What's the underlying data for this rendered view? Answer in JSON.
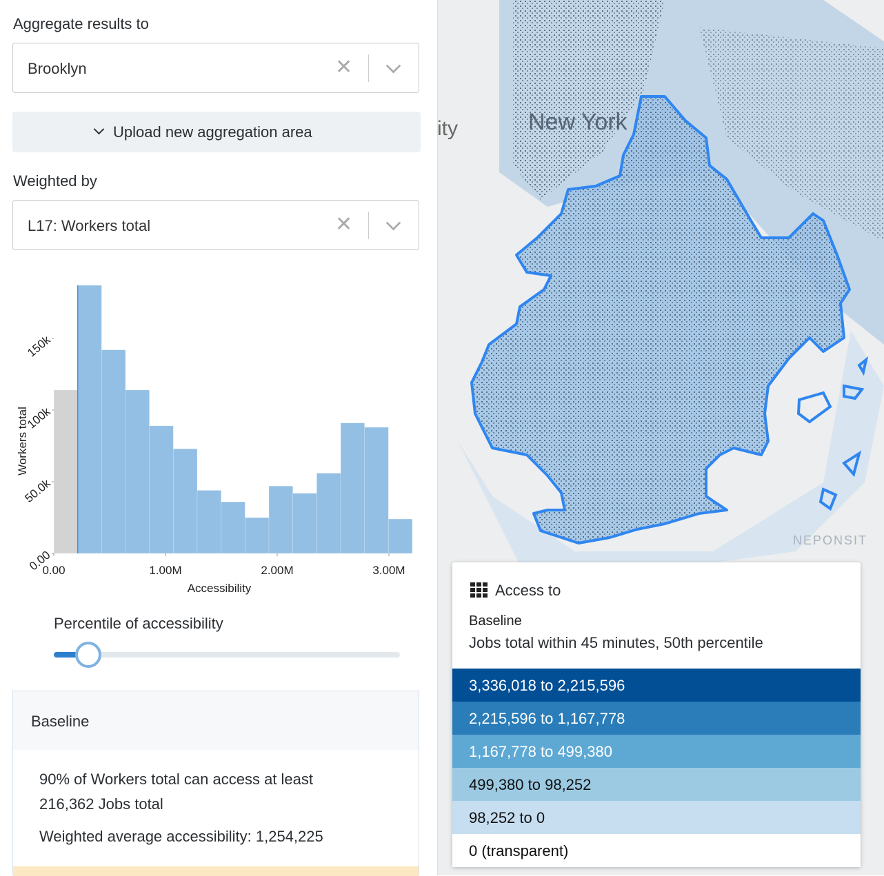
{
  "sidebar": {
    "aggregate_label": "Aggregate results to",
    "aggregate_value": "Brooklyn",
    "upload_button": "Upload new aggregation area",
    "weight_label": "Weighted by",
    "weight_value": "L17: Workers total",
    "slider": {
      "label": "Percentile of accessibility",
      "value": 10,
      "range": [
        0,
        100
      ]
    },
    "summary": {
      "title": "Baseline",
      "statement": "90% of Workers total can access at least 216,362 Jobs total",
      "average": "Weighted average accessibility: 1,254,225"
    }
  },
  "chart_data": {
    "type": "histogram",
    "x_label": "Accessibility",
    "y_label": "Workers total",
    "bins": [
      0,
      214000,
      428000,
      642000,
      856000,
      1070000,
      1284000,
      1498000,
      1712000,
      1926000,
      2140000,
      2354000,
      2568000,
      2782000,
      2996000,
      3210000
    ],
    "values": [
      114000,
      187000,
      142000,
      114000,
      89000,
      73000,
      44000,
      36000,
      25000,
      47000,
      42000,
      56000,
      91000,
      88000,
      24000
    ],
    "colors": [
      "#d3d3d3",
      "#93bfe4",
      "#93bfe4",
      "#93bfe4",
      "#93bfe4",
      "#93bfe4",
      "#93bfe4",
      "#93bfe4",
      "#93bfe4",
      "#93bfe4",
      "#93bfe4",
      "#93bfe4",
      "#93bfe4",
      "#93bfe4",
      "#93bfe4"
    ],
    "xlim": [
      0,
      3210000
    ],
    "ylim": [
      0,
      187000
    ],
    "xticks": [
      {
        "value": 0,
        "label": "0.00"
      },
      {
        "value": 1000000,
        "label": "1.00M"
      },
      {
        "value": 2000000,
        "label": "2.00M"
      },
      {
        "value": 3000000,
        "label": "3.00M"
      }
    ],
    "yticks": [
      {
        "value": 0,
        "label": "0.00"
      },
      {
        "value": 50000,
        "label": "50.0k"
      },
      {
        "value": 100000,
        "label": "100k"
      },
      {
        "value": 150000,
        "label": "150k"
      }
    ]
  },
  "map": {
    "labels": [
      "New York",
      "ity",
      "NEPONSIT"
    ],
    "legend": {
      "title": "Access to",
      "scenario": "Baseline",
      "description": "Jobs total within 45 minutes, 50th percentile",
      "rows": [
        {
          "label": "3,336,018 to 2,215,596",
          "color": "#024f96"
        },
        {
          "label": "2,215,596 to 1,167,778",
          "color": "#2a7db8"
        },
        {
          "label": "1,167,778 to 499,380",
          "color": "#5ea8d4"
        },
        {
          "label": "499,380 to 98,252",
          "color": "#9ccae3"
        },
        {
          "label": "98,252 to 0",
          "color": "#c7ddf0"
        },
        {
          "label": "0 (transparent)",
          "color": "#ffffff"
        }
      ]
    }
  }
}
